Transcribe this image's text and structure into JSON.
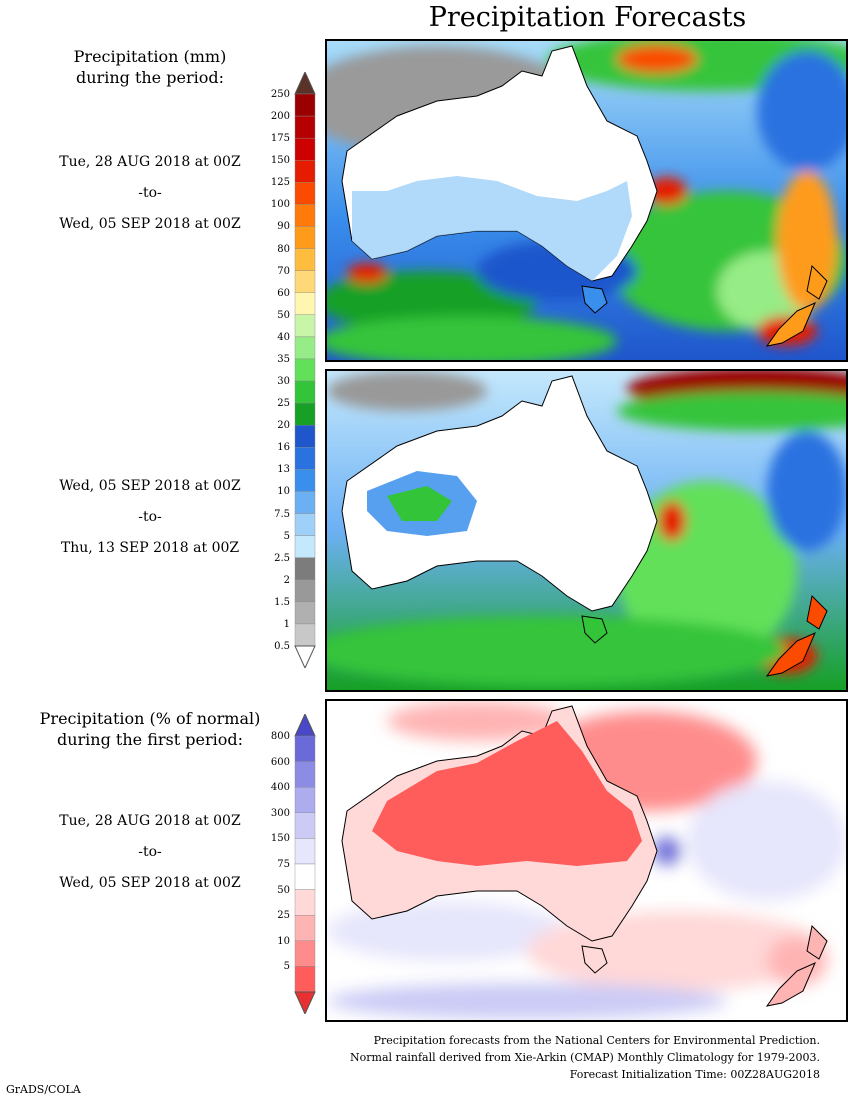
{
  "title": "Precipitation Forecasts",
  "left_panel_1": {
    "heading_line1": "Precipitation (mm)",
    "heading_line2": "during the period:",
    "period_start": "Tue, 28 AUG 2018 at 00Z",
    "period_to": "-to-",
    "period_end": "Wed, 05 SEP 2018 at 00Z"
  },
  "left_panel_2": {
    "period_start": "Wed, 05 SEP 2018 at 00Z",
    "period_to": "-to-",
    "period_end": "Thu, 13 SEP 2018 at 00Z"
  },
  "left_panel_3": {
    "heading_line1": "Precipitation (% of normal)",
    "heading_line2": "during the first period:",
    "period_start": "Tue, 28 AUG 2018 at 00Z",
    "period_to": "-to-",
    "period_end": "Wed, 05 SEP 2018 at 00Z"
  },
  "precip_colorbar": {
    "labels": [
      "250",
      "200",
      "175",
      "150",
      "125",
      "100",
      "90",
      "80",
      "70",
      "60",
      "50",
      "40",
      "35",
      "30",
      "25",
      "20",
      "16",
      "13",
      "10",
      "7.5",
      "5",
      "2.5",
      "2",
      "1.5",
      "1",
      "0.5"
    ],
    "colors": [
      "#9a0000",
      "#b40000",
      "#cd0000",
      "#e51c00",
      "#fa4b00",
      "#ff7a0a",
      "#ff9b1a",
      "#ffbd40",
      "#ffd978",
      "#fff7b0",
      "#c8f5a8",
      "#96ec86",
      "#62e05a",
      "#34c43a",
      "#16a025",
      "#1f56cc",
      "#2a72e0",
      "#3a8eec",
      "#6cb0f4",
      "#9ed0f8",
      "#c4e8fc",
      "#7c7c7c",
      "#999999",
      "#b0b0b0",
      "#c8c8c8"
    ],
    "top_arrow_color": "#5a3228",
    "bottom_arrow_color": "#ffffff"
  },
  "anomaly_colorbar": {
    "labels": [
      "800",
      "600",
      "400",
      "300",
      "150",
      "75",
      "50",
      "25",
      "10",
      "5"
    ],
    "colors": [
      "#6a6ad8",
      "#8c8ce4",
      "#acacee",
      "#cbcbf6",
      "#e6e6fc",
      "#ffffff",
      "#ffd8d8",
      "#ffb4b4",
      "#ff8c8c",
      "#ff5c5c"
    ],
    "top_arrow_color": "#4848c8",
    "bottom_arrow_color": "#e83030"
  },
  "footer": {
    "line1": "Precipitation forecasts from the National Centers for Environmental Prediction.",
    "line2": "Normal rainfall derived from Xie-Arkin (CMAP) Monthly Climatology for 1979-2003.",
    "line3": "Forecast Initialization Time: 00Z28AUG2018"
  },
  "credit": "GrADS/COLA"
}
